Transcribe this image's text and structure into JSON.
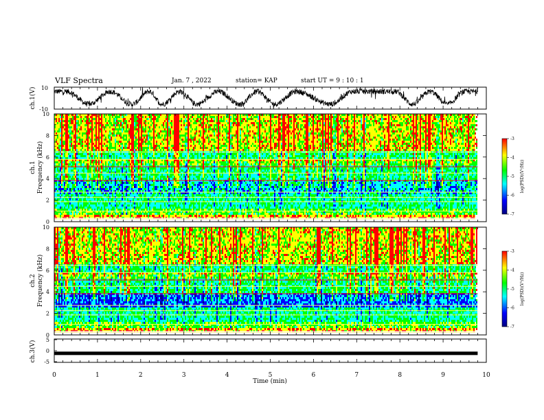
{
  "header": {
    "title": "VLF Spectra",
    "date": "Jan. 7 , 2022",
    "station": "station= KAP",
    "start": "start  UT =   9 : 10 : 1"
  },
  "chart_data": [
    {
      "type": "line",
      "name": "ch1-waveform",
      "ylabel": "ch.1(V)",
      "ylim": [
        -10,
        10
      ],
      "y_ticks": [
        "10",
        "-10"
      ],
      "xlim": [
        0,
        10
      ],
      "x_end": 9.8,
      "oscillation_minima_min": [
        0.8,
        1.8,
        2.5,
        3.3,
        4.3,
        5.1,
        6.4,
        8.3,
        9.1
      ],
      "oscillation_maxima_min": [
        0.3,
        1.3,
        2.2,
        2.9,
        3.8,
        4.7,
        5.6,
        6.9,
        7.9,
        8.7,
        9.5
      ]
    },
    {
      "type": "heatmap",
      "name": "ch1-spectrogram",
      "ylabel": "ch.1\nFrequency (kHz)",
      "ylim": [
        0,
        10
      ],
      "y_ticks": [
        "0",
        "2",
        "4",
        "6",
        "8",
        "10"
      ],
      "xlim": [
        0,
        10
      ],
      "colorbar": {
        "label": "log(PSD)(V²/Hz)",
        "range": [
          -7,
          -3
        ],
        "ticks": [
          "-3",
          "-4",
          "-5",
          "-6",
          "-7"
        ]
      }
    },
    {
      "type": "heatmap",
      "name": "ch2-spectrogram",
      "ylabel": "ch.2\nFrequency (kHz)",
      "ylim": [
        0,
        10
      ],
      "y_ticks": [
        "0",
        "2",
        "4",
        "6",
        "8",
        "10"
      ],
      "xlim": [
        0,
        10
      ],
      "colorbar": {
        "label": "log(PSD)(V²/Hz)",
        "range": [
          -7,
          -3
        ],
        "ticks": [
          "-3",
          "-4",
          "-5",
          "-6",
          "-7"
        ]
      }
    },
    {
      "type": "line",
      "name": "ch3-waveform",
      "ylabel": "ch.3(V)",
      "ylim": [
        -5,
        5
      ],
      "y_ticks": [
        "5",
        "0",
        "-5"
      ],
      "xlim": [
        0,
        10
      ],
      "x_end": 9.8,
      "level": -1.2
    }
  ],
  "xaxis": {
    "label": "Time (min)",
    "ticks": [
      "0",
      "1",
      "2",
      "3",
      "4",
      "5",
      "6",
      "7",
      "8",
      "9",
      "10"
    ]
  },
  "colors": {
    "colormap": [
      "#000080",
      "#0000ff",
      "#00ffff",
      "#00ff00",
      "#ffff00",
      "#ff0000"
    ],
    "stroke": "#000000"
  }
}
